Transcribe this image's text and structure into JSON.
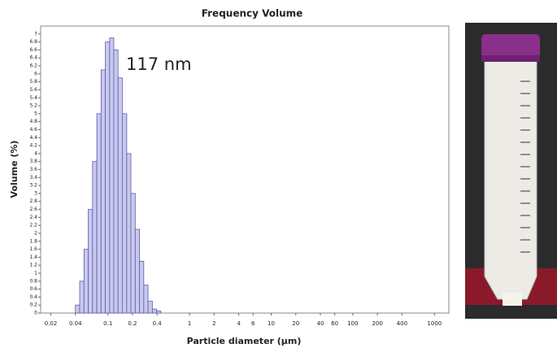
{
  "chart_data": {
    "type": "histogram",
    "title": "Frequency  Volume",
    "xlabel": "Particle diameter (µm)",
    "ylabel": "Volume (%)",
    "annotation": "117 nm",
    "xscale": "log",
    "bins": [
      0.04,
      0.0451,
      0.0509,
      0.0574,
      0.0648,
      0.0731,
      0.0824,
      0.093,
      0.105,
      0.118,
      0.133,
      0.15,
      0.17,
      0.191,
      0.216,
      0.244,
      0.275,
      0.31,
      0.35,
      0.395,
      0.445
    ],
    "counts": [
      0.2,
      0.8,
      1.6,
      2.6,
      3.8,
      5.0,
      6.1,
      6.8,
      6.9,
      6.6,
      5.9,
      5.0,
      4.0,
      3.0,
      2.1,
      1.3,
      0.7,
      0.3,
      0.1,
      0.05
    ],
    "color": "#c9c9ef",
    "edge_color": "#5b5bab",
    "xlim": [
      0.015,
      1500
    ],
    "xticks": [
      0.02,
      0.04,
      0.1,
      0.2,
      0.4,
      1,
      2,
      4,
      6,
      10,
      20,
      40,
      60,
      100,
      200,
      400,
      1000
    ],
    "ylim": [
      0,
      7.2
    ],
    "yticks": [
      0,
      0.2,
      0.4,
      0.6,
      0.8,
      1,
      1.2,
      1.4,
      1.6,
      1.8,
      2,
      2.2,
      2.4,
      2.6,
      2.8,
      3,
      3.2,
      3.4,
      3.6,
      3.8,
      4,
      4.2,
      4.4,
      4.6,
      4.8,
      5,
      5.2,
      5.4,
      5.6,
      5.8,
      6,
      6.2,
      6.4,
      6.6,
      6.8,
      7
    ]
  }
}
